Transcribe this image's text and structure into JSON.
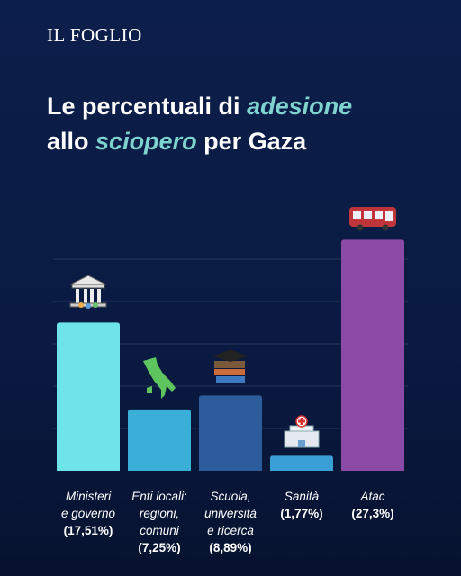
{
  "brand": "IL FOGLIO",
  "chart_data": {
    "type": "bar",
    "title": {
      "line1": [
        "Le percentuali di",
        "adesione"
      ],
      "line2": [
        "allo",
        "sciopero",
        "per Gaza"
      ]
    },
    "categories": [
      [
        "Ministeri",
        "e governo"
      ],
      [
        "Enti locali:",
        "regioni,",
        "comuni"
      ],
      [
        "Scuola,",
        "università",
        "e ricerca"
      ],
      [
        "Sanità"
      ],
      [
        "Atac"
      ]
    ],
    "values": [
      17.51,
      7.25,
      8.89,
      1.77,
      27.3
    ],
    "value_labels": [
      "(17,51%)",
      "(7,25%)",
      "(8,89%)",
      "(1,77%)",
      "(27,3%)"
    ],
    "colors": [
      "#6fe4e8",
      "#39aed6",
      "#2d5c9c",
      "#3a9fd6",
      "#8a4aa6"
    ],
    "ylim": [
      0,
      30
    ],
    "yticks": [
      5,
      10,
      15,
      20,
      25
    ],
    "grid": true
  }
}
